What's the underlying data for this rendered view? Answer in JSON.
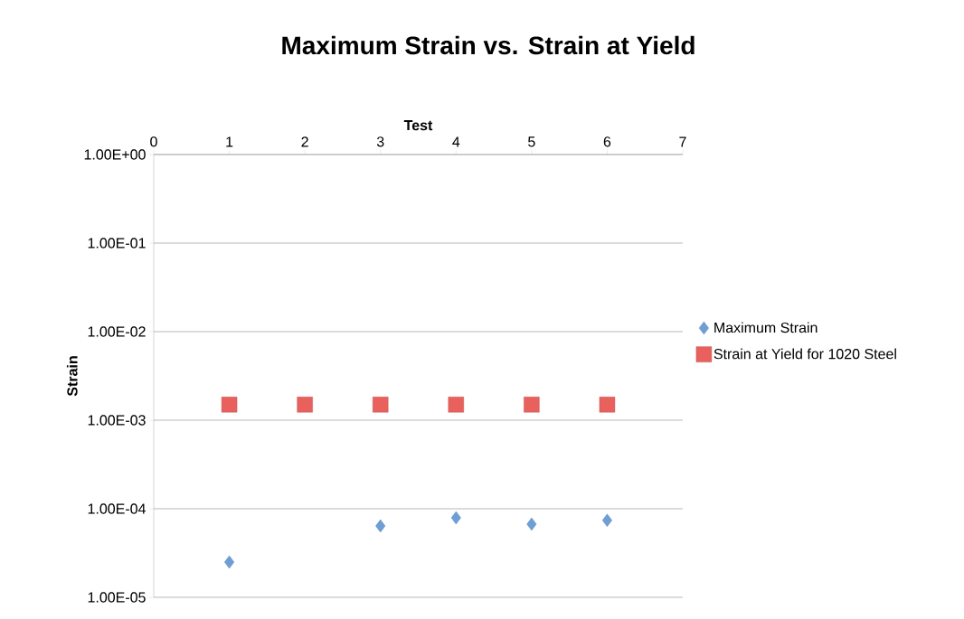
{
  "chart_data": {
    "type": "scatter",
    "title": "Maximum Strain vs. Strain at Yield",
    "xlabel": "Test",
    "ylabel": "Strain",
    "xlim": [
      0,
      7
    ],
    "xticks": [
      0,
      1,
      2,
      3,
      4,
      5,
      6,
      7
    ],
    "ylim": [
      1e-05,
      1
    ],
    "yticks": [
      {
        "value": 1e-05,
        "label": "1.00E-05"
      },
      {
        "value": 0.0001,
        "label": "1.00E-04"
      },
      {
        "value": 0.001,
        "label": "1.00E-03"
      },
      {
        "value": 0.01,
        "label": "1.00E-02"
      },
      {
        "value": 0.1,
        "label": "1.00E-01"
      },
      {
        "value": 1,
        "label": "1.00E+00"
      }
    ],
    "log": "y",
    "grid": "y",
    "legend": "right",
    "series": [
      {
        "name": "Maximum Strain",
        "color": "#6d9fd6",
        "marker": "diamond",
        "x": [
          1,
          3,
          4,
          5,
          6
        ],
        "values": [
          2.5e-05,
          6.4e-05,
          7.9e-05,
          6.7e-05,
          7.4e-05
        ]
      },
      {
        "name": "Strain at Yield for 1020 Steel",
        "color": "#e8615d",
        "marker": "square",
        "x": [
          1,
          2,
          3,
          4,
          5,
          6
        ],
        "values": [
          0.0015,
          0.0015,
          0.0015,
          0.0015,
          0.0015,
          0.0015
        ]
      }
    ]
  }
}
